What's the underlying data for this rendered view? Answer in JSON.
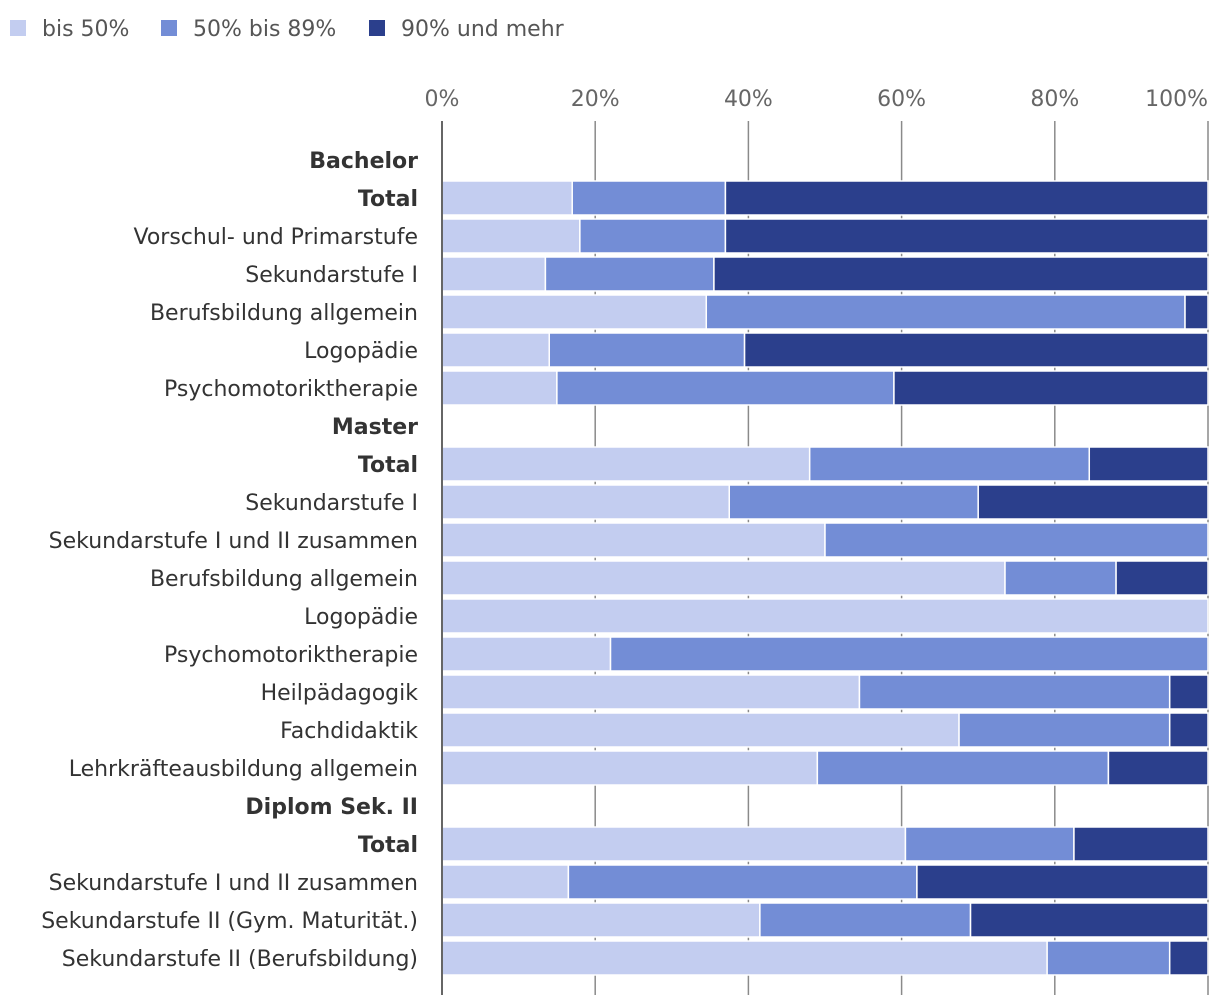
{
  "chart_data": {
    "type": "bar",
    "orientation": "horizontal",
    "stacked": true,
    "title": "",
    "xlabel": "",
    "ylabel": "",
    "xlim": [
      0,
      100
    ],
    "tick_labels": [
      "0%",
      "20%",
      "40%",
      "60%",
      "80%",
      "100%"
    ],
    "legend": {
      "placement": "top-left",
      "entries": [
        {
          "name": "bis 50%",
          "color": "#c3cdf0"
        },
        {
          "name": "50% bis 89%",
          "color": "#738dd6"
        },
        {
          "name": "90% und mehr",
          "color": "#2b3f8c"
        }
      ]
    },
    "series": [
      {
        "name": "bis 50%",
        "color": "#c3cdf0"
      },
      {
        "name": "50% bis 89%",
        "color": "#738dd6"
      },
      {
        "name": "90% und mehr",
        "color": "#2b3f8c"
      }
    ],
    "categories": [
      {
        "label": "Bachelor",
        "header": true,
        "values": null
      },
      {
        "label": "Total",
        "bold": true,
        "values": [
          17,
          20,
          63
        ]
      },
      {
        "label": "Vorschul- und Primarstufe",
        "values": [
          18,
          19,
          63
        ]
      },
      {
        "label": "Sekundarstufe I",
        "values": [
          13.5,
          22,
          64.5
        ]
      },
      {
        "label": "Berufsbildung allgemein",
        "values": [
          34.5,
          62.5,
          3
        ]
      },
      {
        "label": "Logopädie",
        "values": [
          14,
          25.5,
          60.5
        ]
      },
      {
        "label": "Psychomotoriktherapie",
        "values": [
          15,
          44,
          41
        ]
      },
      {
        "label": "Master",
        "header": true,
        "values": null
      },
      {
        "label": "Total",
        "bold": true,
        "values": [
          48,
          36.5,
          15.5
        ]
      },
      {
        "label": "Sekundarstufe I",
        "values": [
          37.5,
          32.5,
          30
        ]
      },
      {
        "label": "Sekundarstufe I und II zusammen",
        "values": [
          50,
          50,
          0
        ]
      },
      {
        "label": "Berufsbildung allgemein",
        "values": [
          73.5,
          14.5,
          12
        ]
      },
      {
        "label": "Logopädie",
        "values": [
          100,
          0,
          0
        ]
      },
      {
        "label": "Psychomotoriktherapie",
        "values": [
          22,
          78,
          0
        ]
      },
      {
        "label": "Heilpädagogik",
        "values": [
          54.5,
          40.5,
          5
        ]
      },
      {
        "label": "Fachdidaktik",
        "values": [
          67.5,
          27.5,
          5
        ]
      },
      {
        "label": "Lehrkräfteausbildung allgemein",
        "values": [
          49,
          38,
          13
        ]
      },
      {
        "label": "Diplom Sek. II",
        "header": true,
        "values": null
      },
      {
        "label": "Total",
        "bold": true,
        "values": [
          60.5,
          22,
          17.5
        ]
      },
      {
        "label": "Sekundarstufe I und II zusammen",
        "values": [
          16.5,
          45.5,
          38
        ]
      },
      {
        "label": "Sekundarstufe II (Gym. Maturität.)",
        "values": [
          41.5,
          27.5,
          31
        ]
      },
      {
        "label": "Sekundarstufe II (Berufsbildung)",
        "values": [
          79,
          16,
          5
        ]
      }
    ]
  }
}
